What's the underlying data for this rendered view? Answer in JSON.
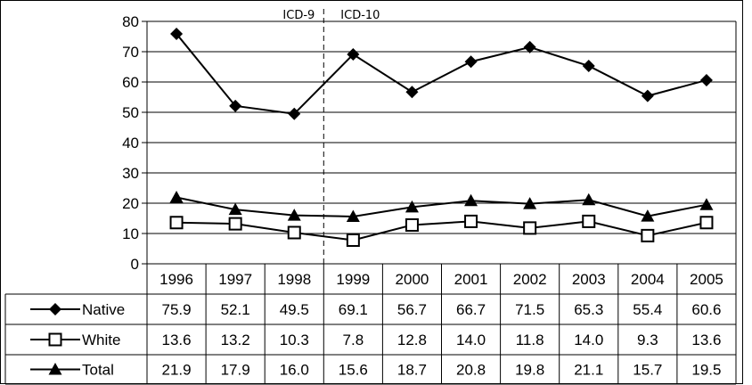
{
  "chart_data": {
    "type": "line",
    "categories": [
      "1996",
      "1997",
      "1998",
      "1999",
      "2000",
      "2001",
      "2002",
      "2003",
      "2004",
      "2005"
    ],
    "ylim": [
      0,
      80
    ],
    "yticks": [
      "0",
      "10",
      "20",
      "30",
      "40",
      "50",
      "60",
      "70",
      "80"
    ],
    "grid": true,
    "legend": "data-table",
    "annotations": [
      "ICD-9",
      "ICD-10"
    ],
    "series": [
      {
        "name": "Native",
        "marker": "diamond",
        "color": "#000000",
        "values": [
          75.9,
          52.1,
          49.5,
          69.1,
          56.7,
          66.7,
          71.5,
          65.3,
          55.4,
          60.6
        ],
        "labels": [
          "75.9",
          "52.1",
          "49.5",
          "69.1",
          "56.7",
          "66.7",
          "71.5",
          "65.3",
          "55.4",
          "60.6"
        ]
      },
      {
        "name": "White",
        "marker": "square-open",
        "color": "#000000",
        "values": [
          13.6,
          13.2,
          10.3,
          7.8,
          12.8,
          14.0,
          11.8,
          14.0,
          9.3,
          13.6
        ],
        "labels": [
          "13.6",
          "13.2",
          "10.3",
          "7.8",
          "12.8",
          "14.0",
          "11.8",
          "14.0",
          "9.3",
          "13.6"
        ]
      },
      {
        "name": "Total",
        "marker": "triangle",
        "color": "#000000",
        "values": [
          21.9,
          17.9,
          16.0,
          15.6,
          18.7,
          20.8,
          19.8,
          21.1,
          15.7,
          19.5
        ],
        "labels": [
          "21.9",
          "17.9",
          "16.0",
          "15.6",
          "18.7",
          "20.8",
          "19.8",
          "21.1",
          "15.7",
          "19.5"
        ]
      }
    ]
  }
}
